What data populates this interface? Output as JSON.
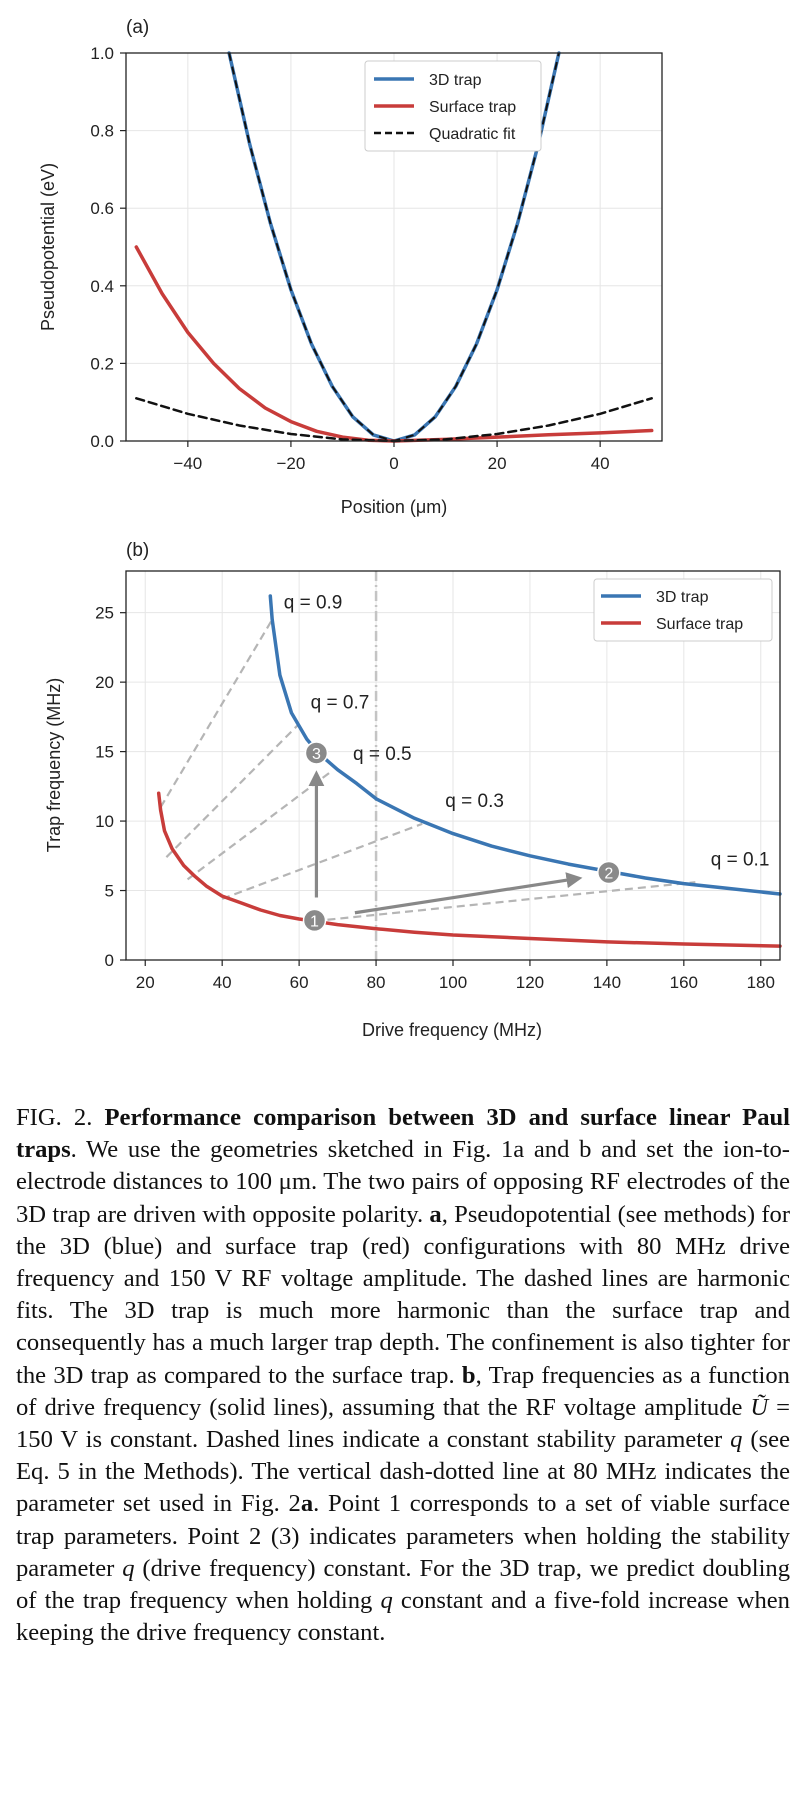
{
  "figure": {
    "panels": [
      {
        "panel_label": "(a)",
        "chart_data": {
          "type": "line",
          "xlabel": "Position (μm)",
          "ylabel": "Pseudopotential (eV)",
          "xlim": [
            -52,
            52
          ],
          "ylim": [
            0.0,
            1.0
          ],
          "xticks": [
            -40,
            -20,
            0,
            20,
            40
          ],
          "xtick_labels": [
            "−40",
            "−20",
            "0",
            "20",
            "40"
          ],
          "yticks": [
            0.0,
            0.2,
            0.4,
            0.6,
            0.8,
            1.0
          ],
          "ytick_labels": [
            "0.0",
            "0.2",
            "0.4",
            "0.6",
            "0.8",
            "1.0"
          ],
          "grid": true,
          "legend": "top-center",
          "series": [
            {
              "name": "3D trap",
              "color": "#3a76b3",
              "style": "solid",
              "x": [
                -32,
                -28,
                -24,
                -20,
                -16,
                -12,
                -8,
                -4,
                0,
                4,
                8,
                12,
                16,
                20,
                24,
                28,
                32
              ],
              "y": [
                1.0,
                0.765,
                0.5625,
                0.39,
                0.25,
                0.141,
                0.0625,
                0.0156,
                0.0,
                0.0156,
                0.0625,
                0.141,
                0.25,
                0.39,
                0.5625,
                0.765,
                1.0
              ]
            },
            {
              "name": "Surface trap",
              "color": "#c83c3a",
              "style": "solid",
              "x": [
                -50,
                -45,
                -40,
                -35,
                -30,
                -25,
                -20,
                -15,
                -10,
                -5,
                0,
                10,
                20,
                30,
                40,
                50
              ],
              "y": [
                0.5,
                0.38,
                0.28,
                0.2,
                0.135,
                0.085,
                0.05,
                0.025,
                0.01,
                0.002,
                0.0,
                0.004,
                0.01,
                0.016,
                0.021,
                0.027
              ]
            },
            {
              "name": "Quadratic fit",
              "color": "#111111",
              "style": "dashed",
              "x": [
                -50,
                -40,
                -30,
                -20,
                -10,
                0,
                10,
                20,
                30,
                40,
                50
              ],
              "y": [
                0.11,
                0.07,
                0.04,
                0.018,
                0.004,
                0.0,
                0.004,
                0.018,
                0.04,
                0.07,
                0.11
              ]
            }
          ]
        }
      },
      {
        "panel_label": "(b)",
        "chart_data": {
          "type": "line",
          "xlabel": "Drive frequency (MHz)",
          "ylabel": "Trap frequency (MHz)",
          "xlim": [
            15,
            185
          ],
          "ylim": [
            0,
            28
          ],
          "xticks": [
            20,
            40,
            60,
            80,
            100,
            120,
            140,
            160,
            180
          ],
          "xtick_labels": [
            "20",
            "40",
            "60",
            "80",
            "100",
            "120",
            "140",
            "160",
            "180"
          ],
          "yticks": [
            0,
            5,
            10,
            15,
            20,
            25
          ],
          "ytick_labels": [
            "0",
            "5",
            "10",
            "15",
            "20",
            "25"
          ],
          "grid": true,
          "legend": "top-right",
          "series": [
            {
              "name": "3D trap",
              "color": "#3a76b3",
              "style": "solid",
              "x": [
                52.5,
                53,
                55,
                58,
                62,
                65,
                70,
                75,
                80,
                90,
                100,
                110,
                120,
                130,
                140,
                150,
                160,
                170,
                185
              ],
              "y": [
                26.2,
                24.5,
                20.5,
                17.8,
                15.9,
                14.9,
                13.7,
                12.7,
                11.6,
                10.2,
                9.1,
                8.2,
                7.5,
                6.9,
                6.4,
                5.9,
                5.5,
                5.2,
                4.75
              ]
            },
            {
              "name": "Surface trap",
              "color": "#c83c3a",
              "style": "solid",
              "x": [
                23.5,
                24,
                25,
                27,
                30,
                33,
                36,
                40,
                45,
                50,
                55,
                60,
                65,
                70,
                80,
                90,
                100,
                120,
                140,
                160,
                185
              ],
              "y": [
                12.0,
                10.8,
                9.3,
                8.0,
                6.8,
                6.0,
                5.3,
                4.6,
                4.1,
                3.6,
                3.2,
                2.95,
                2.75,
                2.55,
                2.25,
                2.0,
                1.8,
                1.55,
                1.3,
                1.15,
                1.0
              ]
            }
          ],
          "q_lines": [
            {
              "label": "q = 0.9",
              "x1": 24.0,
              "y1": 11.0,
              "x2": 53.0,
              "y2": 24.5,
              "lx": 56.0,
              "ly": 25.3
            },
            {
              "label": "q = 0.7",
              "x1": 25.5,
              "y1": 7.4,
              "x2": 60.0,
              "y2": 17.0,
              "lx": 63.0,
              "ly": 18.1
            },
            {
              "label": "q = 0.5",
              "x1": 31.0,
              "y1": 5.8,
              "x2": 68.0,
              "y2": 13.5,
              "lx": 74.0,
              "ly": 14.4
            },
            {
              "label": "q = 0.3",
              "x1": 40.0,
              "y1": 4.4,
              "x2": 92.0,
              "y2": 9.8,
              "lx": 98.0,
              "ly": 11.0
            },
            {
              "label": "q = 0.1",
              "x1": 64.0,
              "y1": 2.8,
              "x2": 163.0,
              "y2": 5.6,
              "lx": 167.0,
              "ly": 6.8
            }
          ],
          "vertical_line": {
            "x": 80,
            "style": "dash-dot"
          },
          "points": [
            {
              "label": "1",
              "x": 64.0,
              "y": 2.85
            },
            {
              "label": "2",
              "x": 140.5,
              "y": 6.3
            },
            {
              "label": "3",
              "x": 64.5,
              "y": 14.9
            }
          ],
          "arrows": [
            {
              "x1": 64.5,
              "y1": 4.5,
              "x2": 64.5,
              "y2": 13.2
            },
            {
              "x1": 74.5,
              "y1": 3.4,
              "x2": 132.0,
              "y2": 5.85
            }
          ]
        }
      }
    ]
  },
  "caption": {
    "figlabel": "FIG. 2.",
    "title": "Performance comparison between 3D and surface linear Paul traps",
    "part1": ". We use the geometries sketched in Fig. 1a and b and set the ion-to-electrode distances to 100 μm. The two pairs of opposing RF electrodes of the 3D trap are driven with opposite polarity. ",
    "label_a": "a",
    "part2": ", Pseudopotential (see methods) for the 3D (blue) and surface trap (red) configurations with 80 MHz drive frequency and 150 V RF voltage amplitude. The dashed lines are harmonic fits. The 3D trap is much more harmonic than the surface trap and consequently has a much larger trap depth. The confinement is also tighter for the 3D trap as compared to the surface trap. ",
    "label_b": "b",
    "part3": ", Trap frequencies as a function of drive frequency (solid lines), assuming that the RF voltage amplitude ",
    "var_u": "Ũ",
    "part4": " = 150 V is constant. Dashed lines indicate a constant stability parameter ",
    "var_q1": "q",
    "part5": " (see Eq. 5 in the Methods). The vertical dash-dotted line at 80 MHz indicates the parameter set used in Fig. 2",
    "label_a2": "a",
    "part6": ". Point 1 corresponds to a set of viable surface trap parameters. Point 2 (3) indicates parameters when holding the stability parameter ",
    "var_q2": "q",
    "part7": " (drive frequency) constant. For the 3D trap, we predict doubling of the trap frequency when holding ",
    "var_q3": "q",
    "part8": " constant and a five-fold increase when keeping the drive frequency constant."
  }
}
